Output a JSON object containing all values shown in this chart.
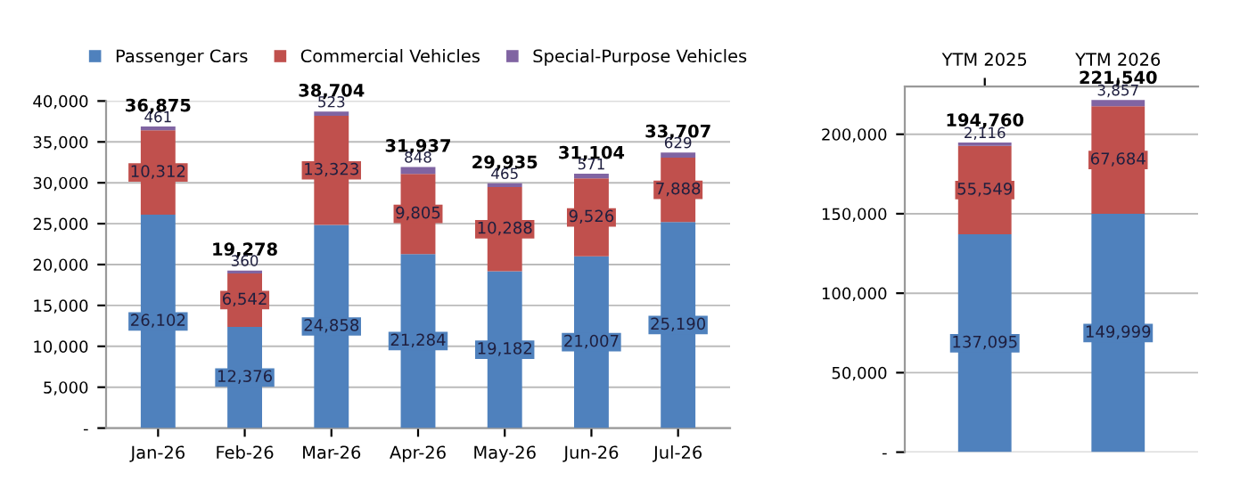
{
  "chart_data": [
    {
      "type": "bar",
      "stacked": true,
      "legend": "top",
      "grid": "y",
      "data_labels": true,
      "categories": [
        "Jan-26",
        "Feb-26",
        "Mar-26",
        "Apr-26",
        "May-26",
        "Jun-26",
        "Jul-26"
      ],
      "ylim": [
        0,
        40000
      ],
      "yticks": [
        {
          "value": 0,
          "label": "-"
        },
        {
          "value": 5000,
          "label": "5,000"
        },
        {
          "value": 10000,
          "label": "10,000"
        },
        {
          "value": 15000,
          "label": "15,000"
        },
        {
          "value": 20000,
          "label": "20,000"
        },
        {
          "value": 25000,
          "label": "25,000"
        },
        {
          "value": 30000,
          "label": "30,000"
        },
        {
          "value": 35000,
          "label": "35,000"
        },
        {
          "value": 40000,
          "label": "40,000"
        }
      ],
      "series": [
        {
          "name": "Passenger Cars",
          "color": "#4f81bd",
          "values": [
            26102,
            12376,
            24858,
            21284,
            19182,
            21007,
            25190
          ],
          "value_labels": [
            "26,102",
            "12,376",
            "24,858",
            "21,284",
            "19,182",
            "21,007",
            "25,190"
          ]
        },
        {
          "name": "Commercial Vehicles",
          "color": "#c0504d",
          "values": [
            10312,
            6542,
            13323,
            9805,
            10288,
            9526,
            7888
          ],
          "value_labels": [
            "10,312",
            "6,542",
            "13,323",
            "9,805",
            "10,288",
            "9,526",
            "7,888"
          ]
        },
        {
          "name": "Special-Purpose Vehicles",
          "color": "#8064a2",
          "values": [
            461,
            360,
            523,
            848,
            465,
            571,
            629
          ],
          "value_labels": [
            "461",
            "360",
            "523",
            "848",
            "465",
            "571",
            "629"
          ]
        }
      ],
      "totals": [
        "36,875",
        "19,278",
        "38,704",
        "31,937",
        "29,935",
        "31,104",
        "33,707"
      ]
    },
    {
      "type": "bar",
      "stacked": true,
      "legend": false,
      "grid": "y",
      "data_labels": true,
      "categories": [
        "YTM 2025",
        "YTM 2026"
      ],
      "ylim": [
        0,
        230000
      ],
      "yticks": [
        {
          "value": 0,
          "label": "-"
        },
        {
          "value": 50000,
          "label": "50,000"
        },
        {
          "value": 100000,
          "label": "100,000"
        },
        {
          "value": 150000,
          "label": "150,000"
        },
        {
          "value": 200000,
          "label": "200,000"
        }
      ],
      "series": [
        {
          "color": "#4f81bd",
          "values": [
            137095,
            149999
          ],
          "value_labels": [
            "137,095",
            "149,999"
          ]
        },
        {
          "color": "#c0504d",
          "values": [
            55549,
            67684
          ],
          "value_labels": [
            "55,549",
            "67,684"
          ]
        },
        {
          "color": "#8064a2",
          "values": [
            2116,
            3857
          ],
          "value_labels": [
            "2,116",
            "3,857"
          ]
        }
      ],
      "totals": [
        "194,760",
        "221,540"
      ]
    }
  ]
}
